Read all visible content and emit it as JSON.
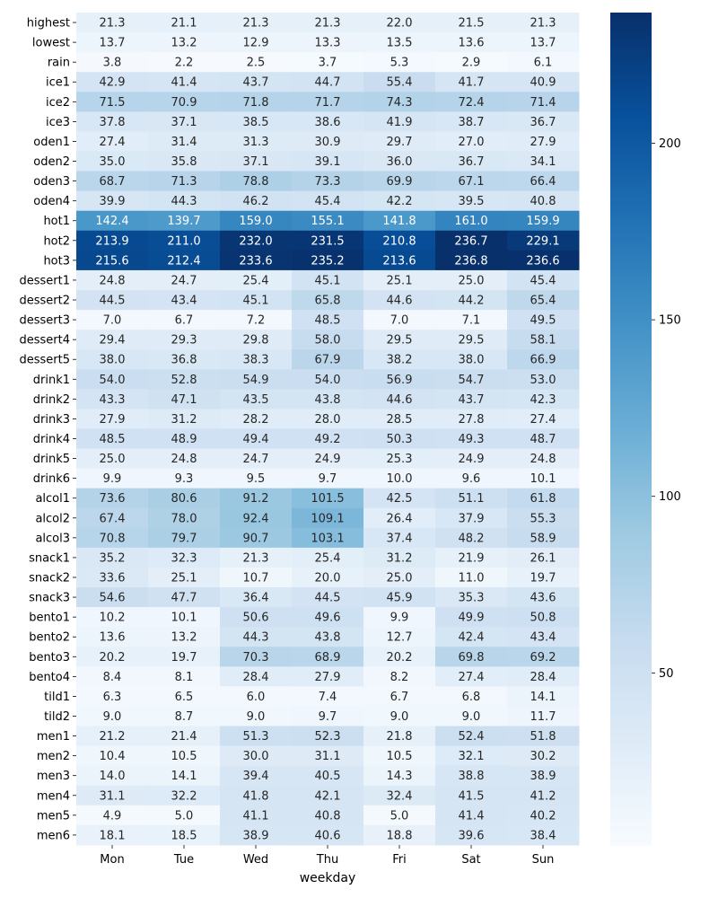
{
  "chart_data": {
    "type": "heatmap",
    "xlabel": "weekday",
    "ylabel": "",
    "colormap": "Blues",
    "colors": {
      "low": "#f7fbff",
      "high": "#08306b"
    },
    "value_range": [
      1.0,
      237.0
    ],
    "columns": [
      "Mon",
      "Tue",
      "Wed",
      "Thu",
      "Fri",
      "Sat",
      "Sun"
    ],
    "rows": [
      "highest",
      "lowest",
      "rain",
      "ice1",
      "ice2",
      "ice3",
      "oden1",
      "oden2",
      "oden3",
      "oden4",
      "hot1",
      "hot2",
      "hot3",
      "dessert1",
      "dessert2",
      "dessert3",
      "dessert4",
      "dessert5",
      "drink1",
      "drink2",
      "drink3",
      "drink4",
      "drink5",
      "drink6",
      "alcol1",
      "alcol2",
      "alcol3",
      "snack1",
      "snack2",
      "snack3",
      "bento1",
      "bento2",
      "bento3",
      "bento4",
      "tild1",
      "tild2",
      "men1",
      "men2",
      "men3",
      "men4",
      "men5",
      "men6"
    ],
    "values": [
      [
        21.3,
        21.1,
        21.3,
        21.3,
        22.0,
        21.5,
        21.3
      ],
      [
        13.7,
        13.2,
        12.9,
        13.3,
        13.5,
        13.6,
        13.7
      ],
      [
        3.8,
        2.2,
        2.5,
        3.7,
        5.3,
        2.9,
        6.1
      ],
      [
        42.9,
        41.4,
        43.7,
        44.7,
        55.4,
        41.7,
        40.9
      ],
      [
        71.5,
        70.9,
        71.8,
        71.7,
        74.3,
        72.4,
        71.4
      ],
      [
        37.8,
        37.1,
        38.5,
        38.6,
        41.9,
        38.7,
        36.7
      ],
      [
        27.4,
        31.4,
        31.3,
        30.9,
        29.7,
        27.0,
        27.9
      ],
      [
        35.0,
        35.8,
        37.1,
        39.1,
        36.0,
        36.7,
        34.1
      ],
      [
        68.7,
        71.3,
        78.8,
        73.3,
        69.9,
        67.1,
        66.4
      ],
      [
        39.9,
        44.3,
        46.2,
        45.4,
        42.2,
        39.5,
        40.8
      ],
      [
        142.4,
        139.7,
        159.0,
        155.1,
        141.8,
        161.0,
        159.9
      ],
      [
        213.9,
        211.0,
        232.0,
        231.5,
        210.8,
        236.7,
        229.1
      ],
      [
        215.6,
        212.4,
        233.6,
        235.2,
        213.6,
        236.8,
        236.6
      ],
      [
        24.8,
        24.7,
        25.4,
        45.1,
        25.1,
        25.0,
        45.4
      ],
      [
        44.5,
        43.4,
        45.1,
        65.8,
        44.6,
        44.2,
        65.4
      ],
      [
        7.0,
        6.7,
        7.2,
        48.5,
        7.0,
        7.1,
        49.5
      ],
      [
        29.4,
        29.3,
        29.8,
        58.0,
        29.5,
        29.5,
        58.1
      ],
      [
        38.0,
        36.8,
        38.3,
        67.9,
        38.2,
        38.0,
        66.9
      ],
      [
        54.0,
        52.8,
        54.9,
        54.0,
        56.9,
        54.7,
        53.0
      ],
      [
        43.3,
        47.1,
        43.5,
        43.8,
        44.6,
        43.7,
        42.3
      ],
      [
        27.9,
        31.2,
        28.2,
        28.0,
        28.5,
        27.8,
        27.4
      ],
      [
        48.5,
        48.9,
        49.4,
        49.2,
        50.3,
        49.3,
        48.7
      ],
      [
        25.0,
        24.8,
        24.7,
        24.9,
        25.3,
        24.9,
        24.8
      ],
      [
        9.9,
        9.3,
        9.5,
        9.7,
        10.0,
        9.6,
        10.1
      ],
      [
        73.6,
        80.6,
        91.2,
        101.5,
        42.5,
        51.1,
        61.8
      ],
      [
        67.4,
        78.0,
        92.4,
        109.1,
        26.4,
        37.9,
        55.3
      ],
      [
        70.8,
        79.7,
        90.7,
        103.1,
        37.4,
        48.2,
        58.9
      ],
      [
        35.2,
        32.3,
        21.3,
        25.4,
        31.2,
        21.9,
        26.1
      ],
      [
        33.6,
        25.1,
        10.7,
        20.0,
        25.0,
        11.0,
        19.7
      ],
      [
        54.6,
        47.7,
        36.4,
        44.5,
        45.9,
        35.3,
        43.6
      ],
      [
        10.2,
        10.1,
        50.6,
        49.6,
        9.9,
        49.9,
        50.8
      ],
      [
        13.6,
        13.2,
        44.3,
        43.8,
        12.7,
        42.4,
        43.4
      ],
      [
        20.2,
        19.7,
        70.3,
        68.9,
        20.2,
        69.8,
        69.2
      ],
      [
        8.4,
        8.1,
        28.4,
        27.9,
        8.2,
        27.4,
        28.4
      ],
      [
        6.3,
        6.5,
        6.0,
        7.4,
        6.7,
        6.8,
        14.1
      ],
      [
        9.0,
        8.7,
        9.0,
        9.7,
        9.0,
        9.0,
        11.7
      ],
      [
        21.2,
        21.4,
        51.3,
        52.3,
        21.8,
        52.4,
        51.8
      ],
      [
        10.4,
        10.5,
        30.0,
        31.1,
        10.5,
        32.1,
        30.2
      ],
      [
        14.0,
        14.1,
        39.4,
        40.5,
        14.3,
        38.8,
        38.9
      ],
      [
        31.1,
        32.2,
        41.8,
        42.1,
        32.4,
        41.5,
        41.2
      ],
      [
        4.9,
        5.0,
        41.1,
        40.8,
        5.0,
        41.4,
        40.2
      ],
      [
        18.1,
        18.5,
        38.9,
        40.6,
        18.8,
        39.6,
        38.4
      ]
    ],
    "colorbar_ticks": [
      50,
      100,
      150,
      200
    ]
  }
}
